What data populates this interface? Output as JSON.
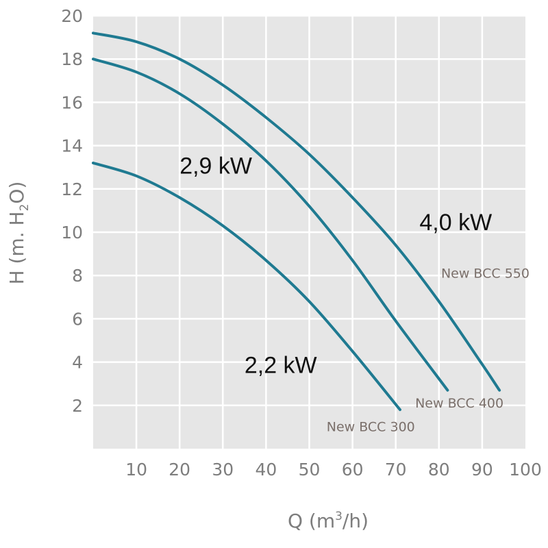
{
  "chart_data": {
    "type": "line",
    "xlabel": {
      "pre": "Q (m",
      "sup": "3",
      "post": "/h)"
    },
    "ylabel": {
      "pre": "H (m. H",
      "sub": "2",
      "post": "O)"
    },
    "xlim": [
      0,
      100
    ],
    "ylim": [
      0,
      20
    ],
    "x_ticks": [
      "10",
      "20",
      "30",
      "40",
      "50",
      "60",
      "70",
      "80",
      "90",
      "100"
    ],
    "y_ticks": [
      "2",
      "4",
      "6",
      "8",
      "10",
      "12",
      "14",
      "16",
      "18",
      "20"
    ],
    "grid": true,
    "background": "#e6e6e6",
    "series": [
      {
        "name": "New BCC 300",
        "power": "2,2 kW",
        "color": "#1f7a91",
        "points": [
          [
            0,
            13.2
          ],
          [
            10,
            12.6
          ],
          [
            20,
            11.6
          ],
          [
            30,
            10.3
          ],
          [
            40,
            8.7
          ],
          [
            50,
            6.8
          ],
          [
            60,
            4.5
          ],
          [
            71,
            1.8
          ]
        ]
      },
      {
        "name": "New BCC 400",
        "power": "2,9 kW",
        "color": "#1f7a91",
        "points": [
          [
            0,
            18.0
          ],
          [
            10,
            17.4
          ],
          [
            20,
            16.4
          ],
          [
            30,
            15.0
          ],
          [
            40,
            13.3
          ],
          [
            50,
            11.2
          ],
          [
            60,
            8.7
          ],
          [
            70,
            5.9
          ],
          [
            82,
            2.7
          ]
        ]
      },
      {
        "name": "New BCC 550",
        "power": "4,0 kW",
        "color": "#1f7a91",
        "points": [
          [
            0,
            19.2
          ],
          [
            10,
            18.8
          ],
          [
            20,
            18.0
          ],
          [
            30,
            16.8
          ],
          [
            40,
            15.3
          ],
          [
            50,
            13.6
          ],
          [
            60,
            11.6
          ],
          [
            70,
            9.4
          ],
          [
            80,
            6.8
          ],
          [
            90,
            3.9
          ],
          [
            94,
            2.7
          ]
        ]
      }
    ],
    "annotations": [
      {
        "text": "2,9 kW",
        "x": 20,
        "y": 12.7,
        "style": "power"
      },
      {
        "text": "4,0 kW",
        "x": 75.5,
        "y": 10.1,
        "style": "power"
      },
      {
        "text": "2,2 kW",
        "x": 35,
        "y": 3.5,
        "style": "power"
      },
      {
        "text": "New BCC 550",
        "x": 80.5,
        "y": 7.9,
        "style": "model"
      },
      {
        "text": "New BCC 400",
        "x": 74.5,
        "y": 1.9,
        "style": "model"
      },
      {
        "text": "New BCC 300",
        "x": 54,
        "y": 0.8,
        "style": "model"
      }
    ]
  }
}
